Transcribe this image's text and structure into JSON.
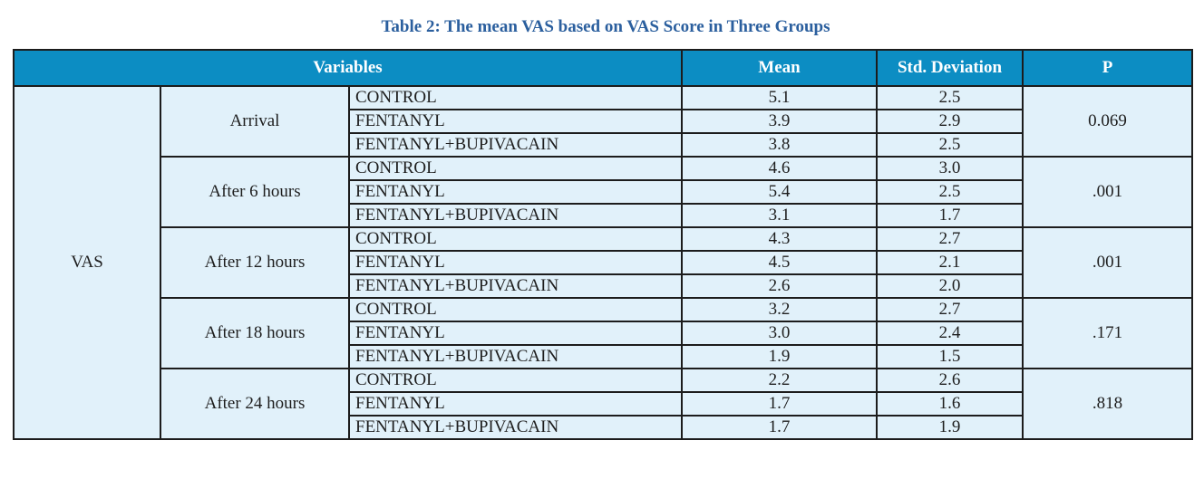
{
  "caption": "Table 2: The mean VAS based on VAS Score in Three Groups",
  "headers": {
    "variables": "Variables",
    "mean": "Mean",
    "std": "Std. Deviation",
    "p": "P"
  },
  "variable": "VAS",
  "time_blocks": [
    {
      "label": "Arrival",
      "p": "0.069",
      "rows": [
        {
          "group": "CONTROL",
          "mean": "5.1",
          "std": "2.5"
        },
        {
          "group": "FENTANYL",
          "mean": "3.9",
          "std": "2.9"
        },
        {
          "group": "FENTANYL+BUPIVACAIN",
          "mean": "3.8",
          "std": "2.5"
        }
      ]
    },
    {
      "label": "After 6 hours",
      "p": ".001",
      "rows": [
        {
          "group": "CONTROL",
          "mean": "4.6",
          "std": "3.0"
        },
        {
          "group": "FENTANYL",
          "mean": "5.4",
          "std": "2.5"
        },
        {
          "group": "FENTANYL+BUPIVACAIN",
          "mean": "3.1",
          "std": "1.7"
        }
      ]
    },
    {
      "label": "After 12 hours",
      "p": ".001",
      "rows": [
        {
          "group": "CONTROL",
          "mean": "4.3",
          "std": "2.7"
        },
        {
          "group": "FENTANYL",
          "mean": "4.5",
          "std": "2.1"
        },
        {
          "group": "FENTANYL+BUPIVACAIN",
          "mean": "2.6",
          "std": "2.0"
        }
      ]
    },
    {
      "label": "After 18 hours",
      "p": ".171",
      "rows": [
        {
          "group": "CONTROL",
          "mean": "3.2",
          "std": "2.7"
        },
        {
          "group": "FENTANYL",
          "mean": "3.0",
          "std": "2.4"
        },
        {
          "group": "FENTANYL+BUPIVACAIN",
          "mean": "1.9",
          "std": "1.5"
        }
      ]
    },
    {
      "label": "After 24 hours",
      "p": ".818",
      "rows": [
        {
          "group": "CONTROL",
          "mean": "2.2",
          "std": "2.6"
        },
        {
          "group": "FENTANYL",
          "mean": "1.7",
          "std": "1.6"
        },
        {
          "group": "FENTANYL+BUPIVACAIN",
          "mean": "1.7",
          "std": "1.9"
        }
      ]
    }
  ],
  "colors": {
    "caption": "#2b5f9e",
    "header_bg": "#0c8dc3",
    "header_text": "#ffffff",
    "cell_bg": "#e1f1fa",
    "border": "#1c1c1c"
  }
}
